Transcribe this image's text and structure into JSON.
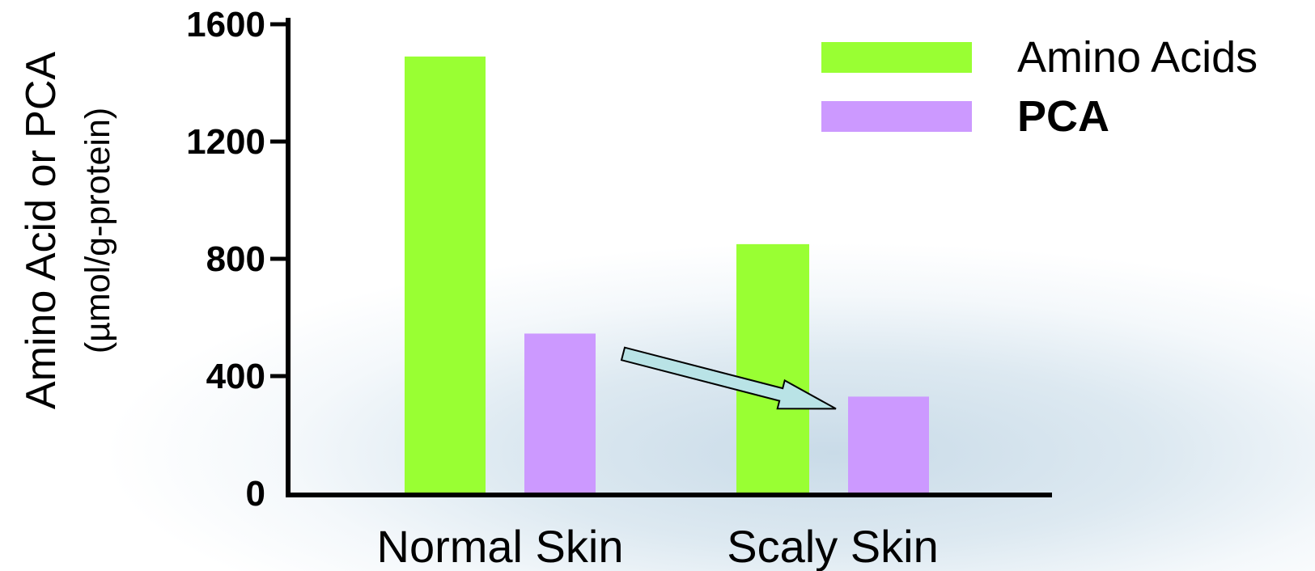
{
  "chart_data": {
    "type": "bar",
    "title": "",
    "ylabel_line1": "Amino Acid or PCA",
    "ylabel_line2": "(µmol/g-protein)",
    "xlabel": "",
    "categories": [
      "Normal Skin",
      "Scaly Skin"
    ],
    "series": [
      {
        "name": "Amino Acids",
        "color": "#99ff33",
        "values": [
          1490,
          850
        ]
      },
      {
        "name": "PCA",
        "color": "#cc99ff",
        "values": [
          545,
          330
        ]
      }
    ],
    "ylim": [
      0,
      1600
    ],
    "yticks": [
      "0",
      "400",
      "800",
      "1200",
      "1600"
    ],
    "grid": false,
    "legend": "top-right",
    "annotations": [
      {
        "type": "arrow",
        "from_series": "PCA",
        "from_category": "Normal Skin",
        "to_category": "Scaly Skin",
        "color": "#b9e3e6"
      }
    ]
  }
}
